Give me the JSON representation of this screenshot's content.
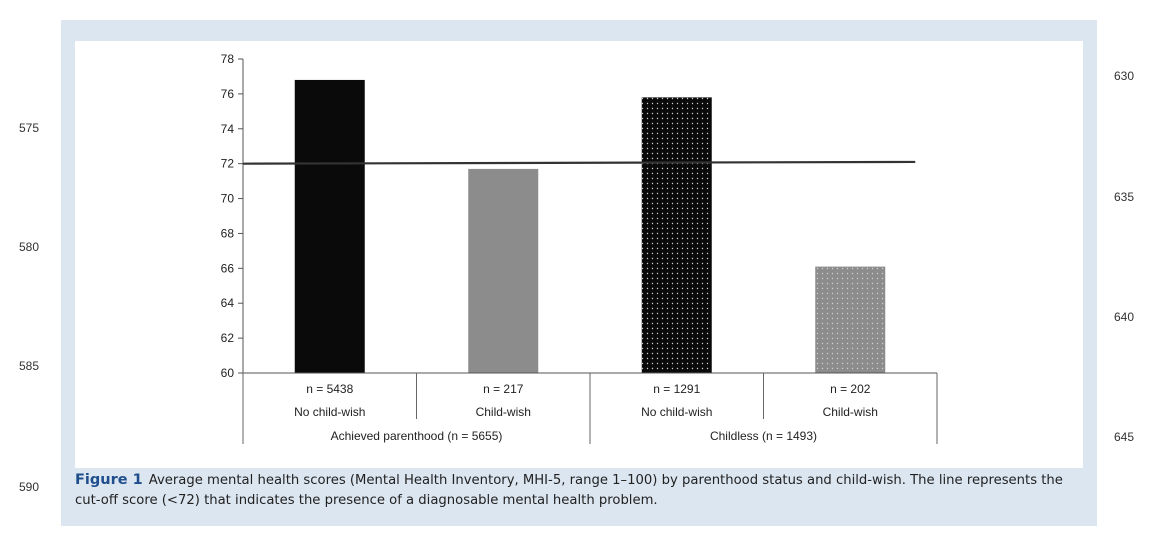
{
  "line_numbers_left": [
    "575",
    "580",
    "585",
    "590"
  ],
  "line_numbers_right": [
    "630",
    "635",
    "640",
    "645"
  ],
  "caption": {
    "label": "Figure 1",
    "text": "Average mental health scores (Mental Health Inventory, MHI-5, range 1–100) by parenthood status and child-wish. The line represents the cut-off score (<72) that indicates the presence of a diagnosable mental health problem."
  },
  "chart_data": {
    "type": "bar",
    "title": "",
    "xlabel": "",
    "ylabel": "",
    "ylim": [
      60,
      78
    ],
    "yticks": [
      60,
      62,
      64,
      66,
      68,
      70,
      72,
      74,
      76,
      78
    ],
    "grid": false,
    "categories": [
      {
        "n_label": "n = 5438",
        "label": "No child-wish",
        "group": "Achieved parenthood (n = 5655)",
        "value": 76.8,
        "fill": "solid-black"
      },
      {
        "n_label": "n = 217",
        "label": "Child-wish",
        "group": "Achieved parenthood (n = 5655)",
        "value": 71.7,
        "fill": "solid-gray"
      },
      {
        "n_label": "n = 1291",
        "label": "No child-wish",
        "group": "Childless (n = 1493)",
        "value": 75.8,
        "fill": "dotted-black"
      },
      {
        "n_label": "n = 202",
        "label": "Child-wish",
        "group": "Childless (n = 1493)",
        "value": 66.1,
        "fill": "dotted-gray"
      }
    ],
    "groups": [
      "Achieved parenthood (n = 5655)",
      "Childless (n = 1493)"
    ],
    "reference_line": {
      "value": 72,
      "value_end": 72.1
    },
    "colors": {
      "black": "#0a0a0a",
      "gray": "#8c8c8c",
      "dot": "#cfcfcf",
      "line": "#333333"
    }
  }
}
